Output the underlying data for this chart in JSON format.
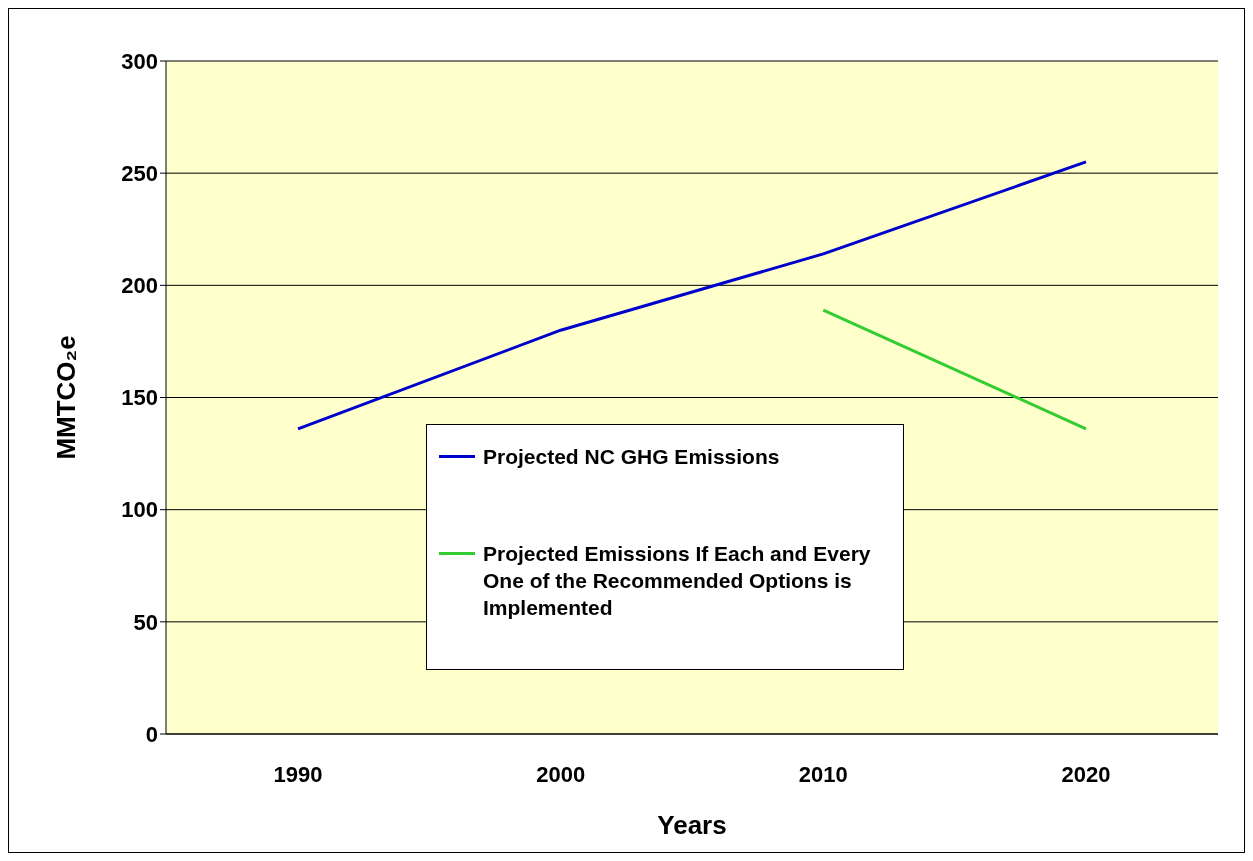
{
  "chart_data": {
    "type": "line",
    "xlabel": "Years",
    "ylabel": "MMTCO₂e",
    "categories": [
      "1990",
      "2000",
      "2010",
      "2020"
    ],
    "series": [
      {
        "name": "Projected NC GHG Emissions",
        "color": "#0000cc",
        "values": [
          136,
          180,
          214,
          255
        ]
      },
      {
        "name": "Projected Emissions If Each and Every One of the Recommended Options is Implemented",
        "color": "#33cc33",
        "values": [
          null,
          null,
          189,
          136
        ]
      }
    ],
    "ylim": [
      0,
      300
    ],
    "yticks": [
      0,
      50,
      100,
      150,
      200,
      250,
      300
    ],
    "grid": "y",
    "legend": "bottom",
    "marker": "none",
    "line_style": "solid"
  }
}
